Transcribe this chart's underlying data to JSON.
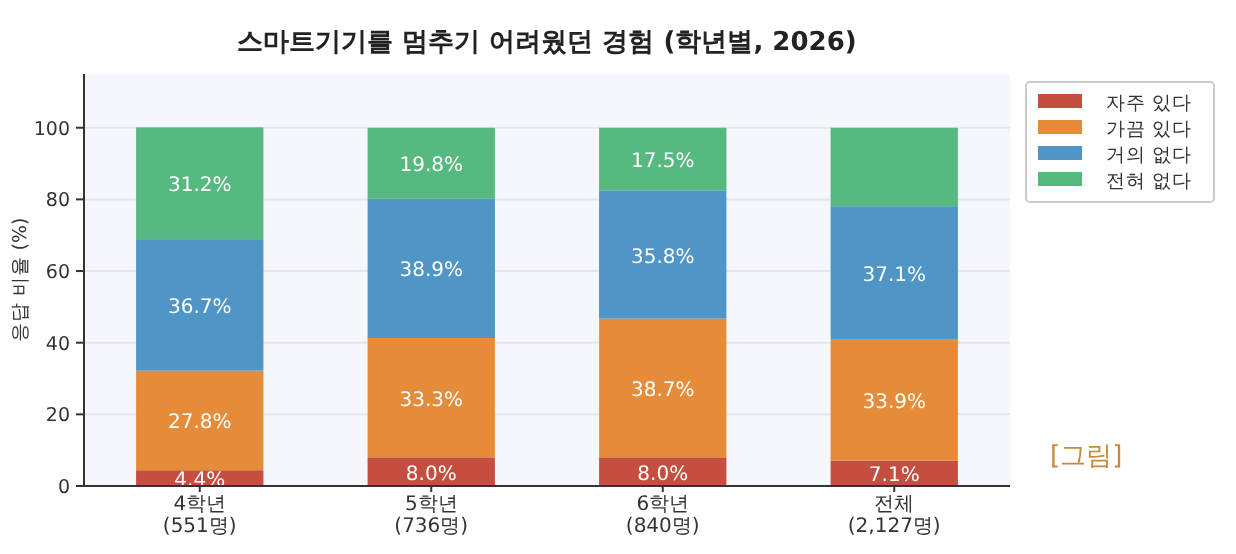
{
  "chart_data": {
    "type": "bar",
    "stacked": true,
    "title": "스마트기기를 멈추기 어려웠던 경험 (학년별, 2026)",
    "ylabel": "응답 비율 (%)",
    "categories": [
      "4학년\n(551명)",
      "5학년\n(736명)",
      "6학년\n(840명)",
      "전체\n(2,127명)"
    ],
    "series": [
      {
        "name": "자주 있다",
        "color": "#c44e3f",
        "values": [
          4.4,
          8.0,
          8.0,
          7.1
        ],
        "value_labels": [
          "4.4%",
          "8.0%",
          "8.0%",
          "7.1%"
        ]
      },
      {
        "name": "가끔 있다",
        "color": "#e68c38",
        "values": [
          27.8,
          33.3,
          38.7,
          33.9
        ],
        "value_labels": [
          "27.8%",
          "33.3%",
          "38.7%",
          "33.9%"
        ]
      },
      {
        "name": "거의 없다",
        "color": "#4f95c6",
        "values": [
          36.7,
          38.9,
          35.8,
          37.1
        ],
        "value_labels": [
          "36.7%",
          "38.9%",
          "35.8%",
          "37.1%"
        ]
      },
      {
        "name": "전혀 없다",
        "color": "#55b980",
        "values": [
          31.2,
          19.8,
          17.5,
          21.9
        ],
        "value_labels": [
          "31.2%",
          "19.8%",
          "17.5%",
          null
        ]
      }
    ],
    "ylim": [
      0,
      115
    ],
    "yticks": [
      0,
      20,
      40,
      60,
      80,
      100
    ],
    "grid": "y",
    "legend": "right",
    "annotations": [
      "[그림]"
    ]
  }
}
